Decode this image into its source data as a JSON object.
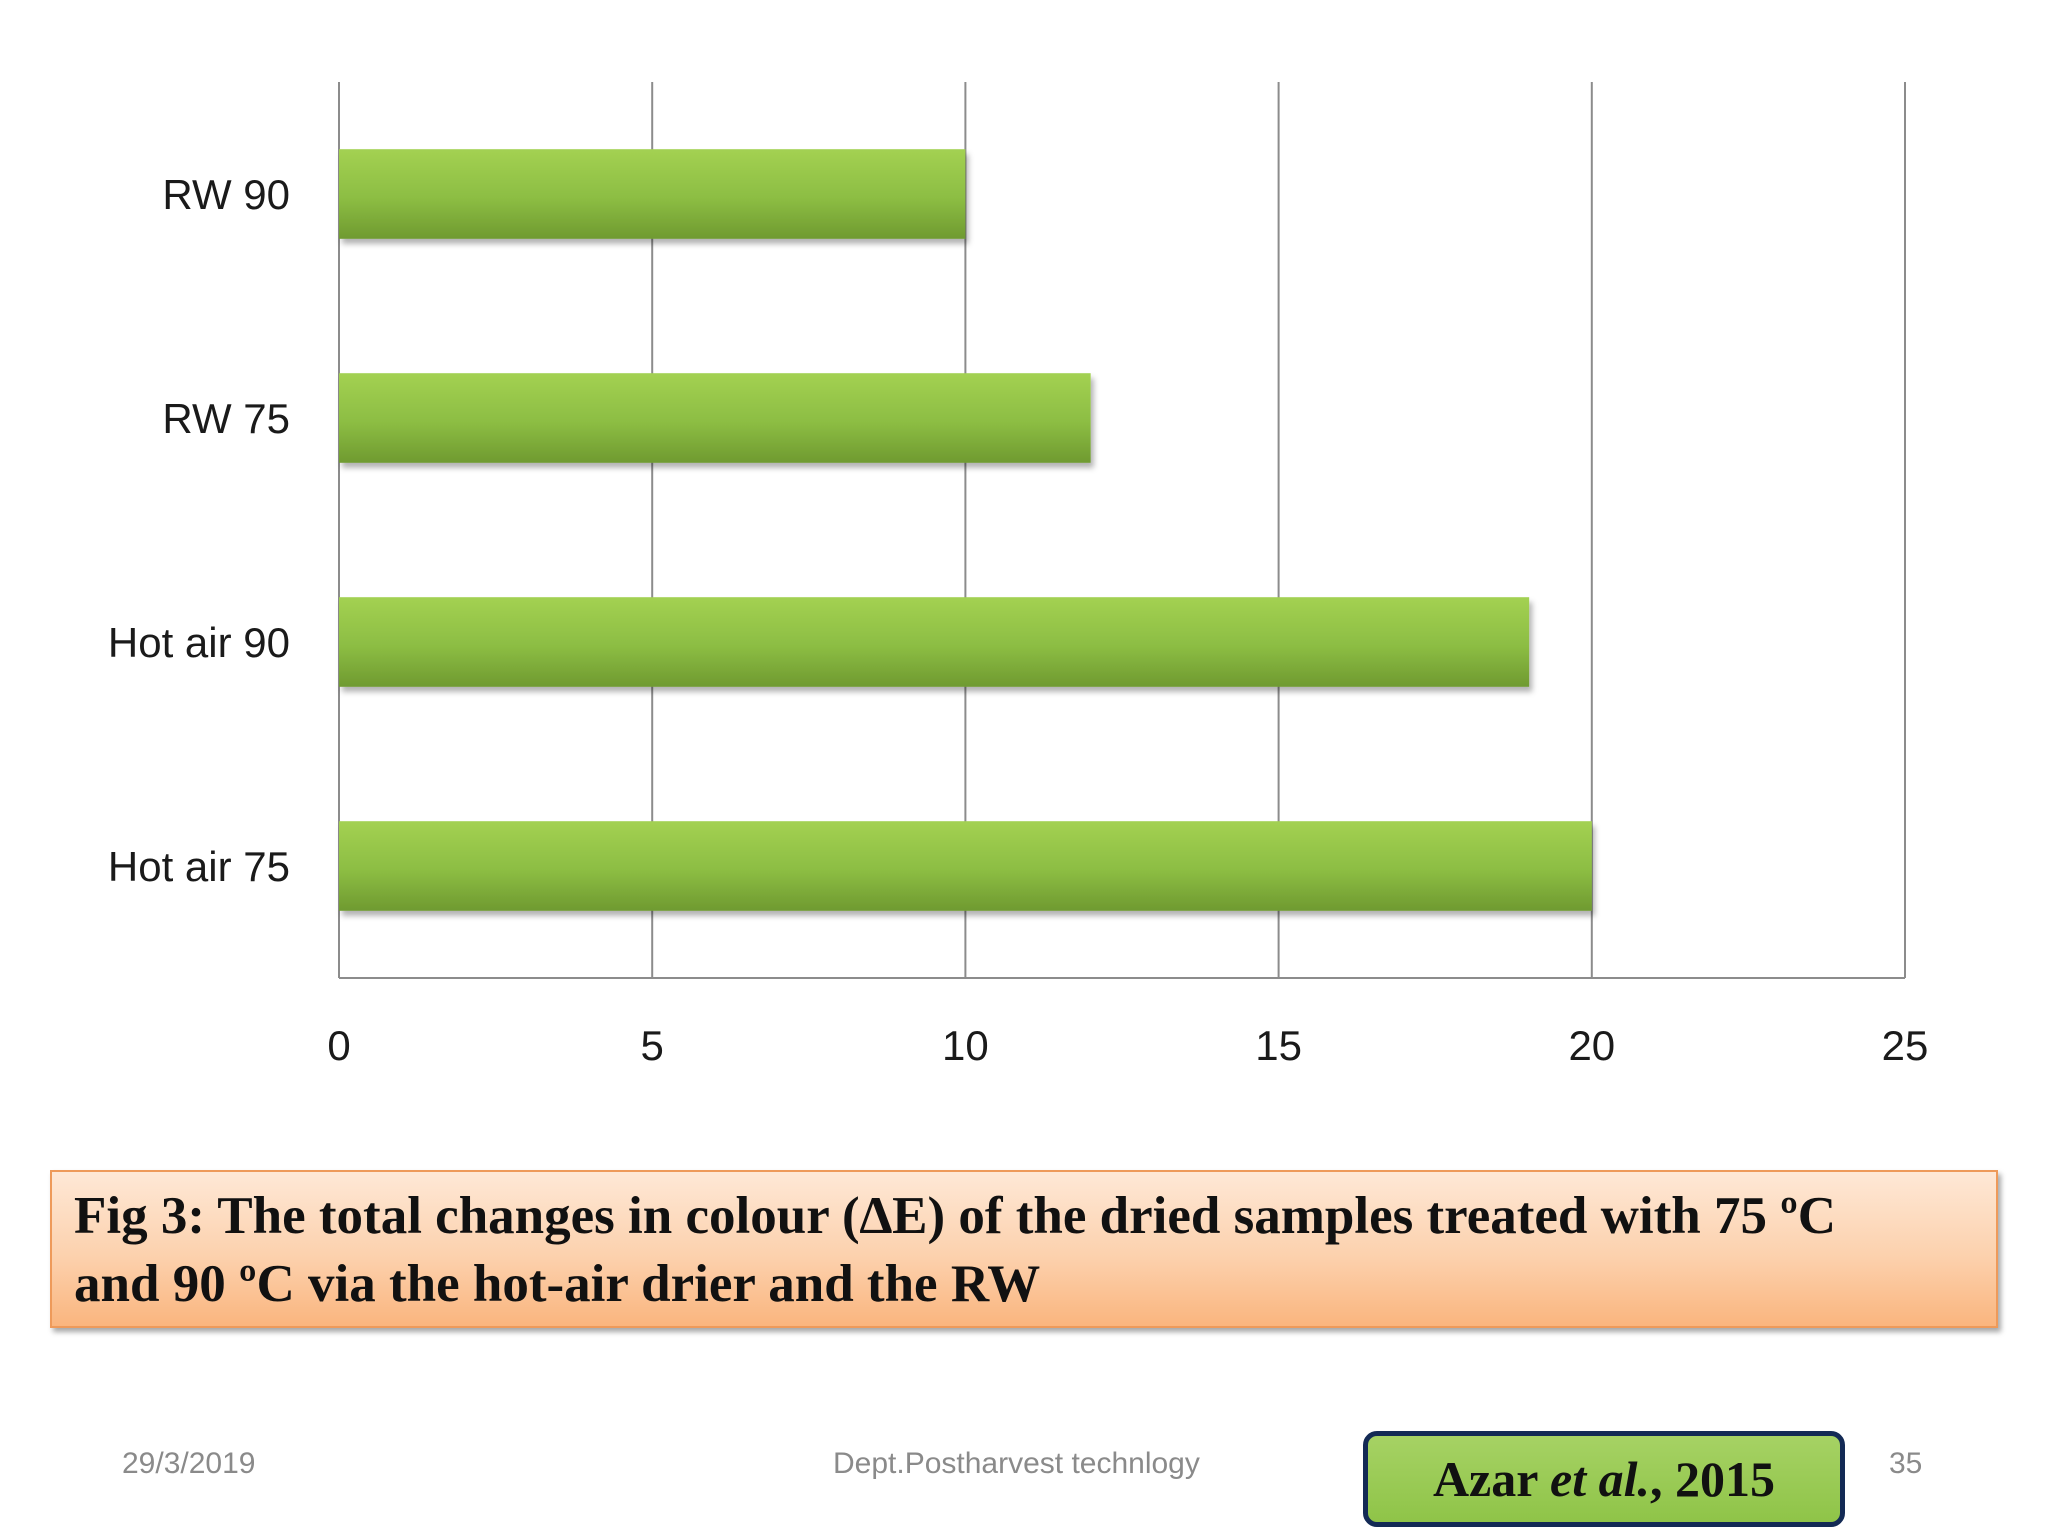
{
  "chart_data": {
    "type": "bar",
    "orientation": "horizontal",
    "categories": [
      "RW 90",
      "RW 75",
      "Hot air 90",
      "Hot air 75"
    ],
    "values": [
      10,
      12,
      19,
      20
    ],
    "xlim": [
      0,
      25
    ],
    "x_ticks": [
      "0",
      "5",
      "10",
      "15",
      "20",
      "25"
    ],
    "grid": "vertical",
    "bar_color": "#8bbf40",
    "legend": "none"
  },
  "caption": {
    "line1": "Fig 3: The total changes in colour (∆E) of the dried samples treated with 75 ºC",
    "line2": "and 90 ºC via the hot-air drier and the RW"
  },
  "footer": {
    "date": "29/3/2019",
    "department": "Dept.Postharvest technlogy",
    "page_number": "35"
  },
  "citation": {
    "authors": "Azar ",
    "etal": "et al.",
    "year": ", 2015"
  },
  "colors": {
    "caption_border": "#ee9a5a",
    "citation_border": "#132a55",
    "citation_fill": "#9acb55"
  }
}
